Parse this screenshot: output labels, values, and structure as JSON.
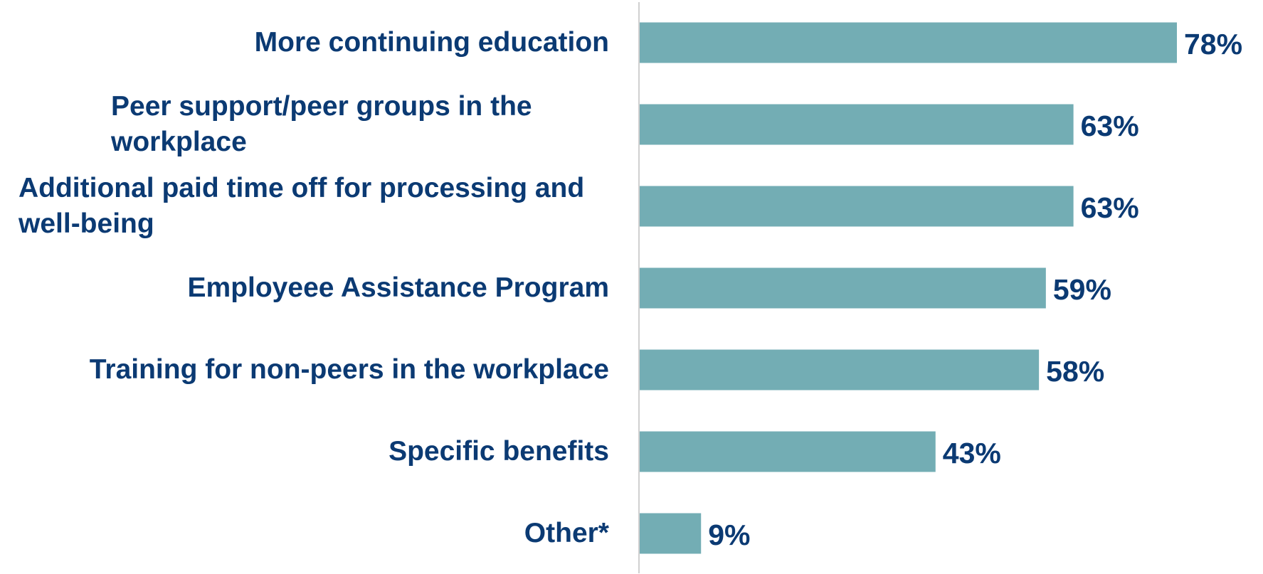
{
  "chart_data": {
    "type": "bar",
    "orientation": "horizontal",
    "categories": [
      "More continuing education",
      "Peer support/peer groups in the workplace",
      "Additional paid time off for processing and well-being",
      "Employeee Assistance Program",
      "Training for non-peers in the workplace",
      "Specific benefits",
      "Other*"
    ],
    "values": [
      78,
      63,
      63,
      59,
      58,
      43,
      9
    ],
    "value_labels": [
      "78%",
      "63%",
      "63%",
      "59%",
      "58%",
      "43%",
      "9%"
    ],
    "color": "#73adb4",
    "label_color": "#0b3a73"
  }
}
